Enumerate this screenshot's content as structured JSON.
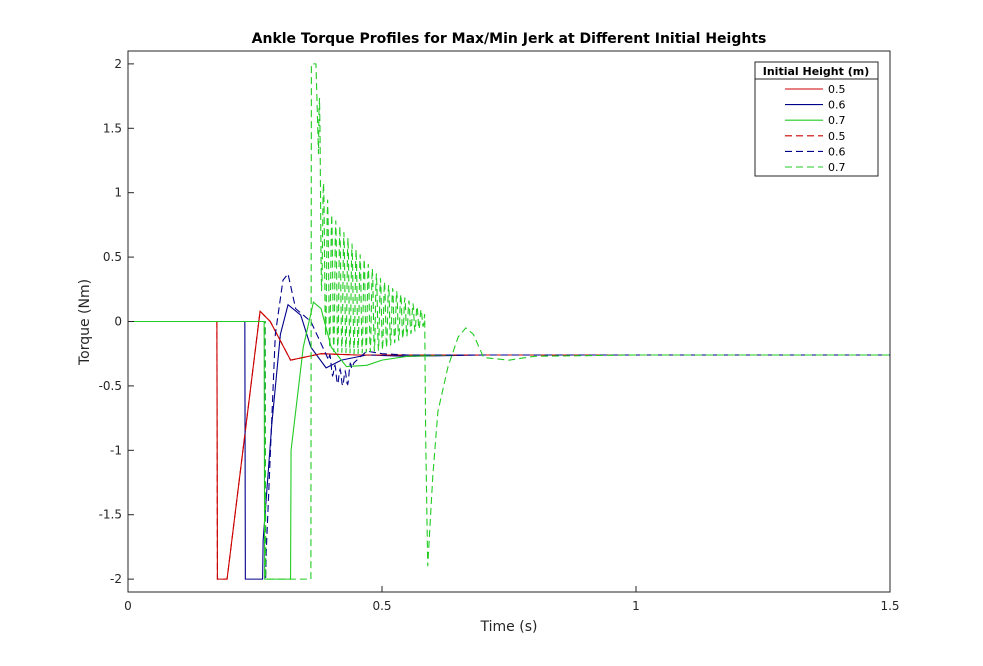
{
  "chart_data": {
    "type": "line",
    "title": "Ankle Torque Profiles for Max/Min Jerk at Different Initial Heights",
    "xlabel": "Time (s)",
    "ylabel": "Torque (Nm)",
    "xlim": [
      0,
      1.5
    ],
    "ylim": [
      -2.1,
      2.1
    ],
    "xticks": [
      0,
      0.5,
      1,
      1.5
    ],
    "xtick_labels": [
      "0",
      "0.5",
      "1",
      "1.5"
    ],
    "yticks": [
      -2,
      -1.5,
      -1,
      -0.5,
      0,
      0.5,
      1,
      1.5,
      2
    ],
    "ytick_labels": [
      "-2",
      "-1.5",
      "-1",
      "-0.5",
      "0",
      "0.5",
      "1",
      "1.5",
      "2"
    ],
    "grid": false,
    "legend": {
      "title": "Initial Height (m)",
      "placement": "top-right"
    },
    "series": [
      {
        "name": "0.5",
        "color": "#cc0000",
        "style": "solid",
        "x": [
          0,
          0.175,
          0.176,
          0.195,
          0.26,
          0.28,
          0.32,
          0.38,
          0.45,
          0.5,
          0.6,
          0.7,
          0.8,
          1.0,
          1.5
        ],
        "y": [
          0,
          0,
          -2,
          -2,
          0.08,
          0.0,
          -0.3,
          -0.25,
          -0.26,
          -0.26,
          -0.26,
          -0.26,
          -0.26,
          -0.26,
          -0.26
        ]
      },
      {
        "name": "0.6",
        "color": "#00008b",
        "style": "solid",
        "x": [
          0,
          0.23,
          0.231,
          0.265,
          0.266,
          0.283,
          0.3,
          0.315,
          0.34,
          0.36,
          0.39,
          0.42,
          0.47,
          0.55,
          0.7,
          1.0,
          1.5
        ],
        "y": [
          0,
          0,
          -2,
          -2,
          -1.7,
          -0.8,
          -0.1,
          0.13,
          0.05,
          -0.2,
          -0.36,
          -0.3,
          -0.26,
          -0.27,
          -0.26,
          -0.26,
          -0.26
        ]
      },
      {
        "name": "0.7",
        "color": "#22cc22",
        "style": "solid",
        "x": [
          0,
          0.268,
          0.269,
          0.32,
          0.321,
          0.345,
          0.365,
          0.38,
          0.4,
          0.43,
          0.47,
          0.5,
          0.55,
          0.65,
          0.8,
          1.0,
          1.5
        ],
        "y": [
          0,
          0,
          -2,
          -2,
          -1.0,
          -0.2,
          0.15,
          0.1,
          -0.2,
          -0.35,
          -0.34,
          -0.3,
          -0.27,
          -0.26,
          -0.26,
          -0.26,
          -0.26
        ]
      },
      {
        "name": "0.5",
        "color": "#cc0000",
        "style": "dashed",
        "x": [
          0,
          0.175,
          0.176,
          0.195,
          0.26,
          0.28,
          0.32,
          0.38,
          0.45,
          0.5,
          0.6,
          0.7,
          0.8,
          1.0,
          1.5
        ],
        "y": [
          0,
          0,
          -2,
          -2,
          0.08,
          0.0,
          -0.3,
          -0.25,
          -0.26,
          -0.26,
          -0.26,
          -0.26,
          -0.26,
          -0.26,
          -0.26
        ]
      },
      {
        "name": "0.6",
        "color": "#00008b",
        "style": "dashed",
        "x": [
          0,
          0.27,
          0.271,
          0.272,
          0.29,
          0.305,
          0.315,
          0.33,
          0.36,
          0.395,
          0.41,
          0.43,
          0.445,
          0.47,
          0.5,
          0.55,
          0.7,
          1.0,
          1.5
        ],
        "y": [
          0,
          0,
          -2,
          -1.8,
          -0.1,
          0.32,
          0.37,
          0.1,
          0.0,
          -0.3,
          -0.42,
          -0.45,
          -0.32,
          -0.23,
          -0.25,
          -0.26,
          -0.26,
          -0.26,
          -0.26
        ],
        "oscillation": {
          "start": 0.395,
          "end": 0.44,
          "period": 0.01,
          "amplitude": 0.06
        }
      },
      {
        "name": "0.7",
        "color": "#22cc22",
        "style": "dashed",
        "x": [
          0,
          0.27,
          0.271,
          0.36,
          0.361,
          0.37,
          0.375,
          0.385,
          0.4,
          0.45,
          0.5,
          0.55,
          0.585,
          0.586,
          0.59,
          0.6,
          0.61,
          0.63,
          0.65,
          0.665,
          0.68,
          0.7,
          0.75,
          0.8,
          1.0,
          1.5
        ],
        "y": [
          0,
          0,
          -2,
          -2,
          2.0,
          2.0,
          1.3,
          0.5,
          0.3,
          0.15,
          0.05,
          0.03,
          0.02,
          -0.9,
          -1.9,
          -1.2,
          -0.7,
          -0.35,
          -0.12,
          -0.05,
          -0.1,
          -0.28,
          -0.3,
          -0.27,
          -0.26,
          -0.26
        ],
        "oscillation": {
          "start": 0.375,
          "end": 0.585,
          "period": 0.008,
          "amplitude": 0.6,
          "decay_to": 0.05
        }
      }
    ]
  }
}
